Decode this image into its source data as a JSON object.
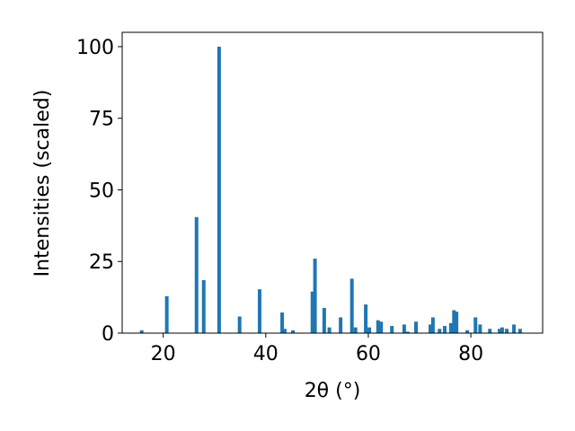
{
  "chart_data": {
    "type": "bar",
    "xlabel": "2θ (°)",
    "ylabel": "Intensities (scaled)",
    "x": [
      15.8,
      20.7,
      26.5,
      27.9,
      30.9,
      34.9,
      38.8,
      43.2,
      43.7,
      45.3,
      49.1,
      49.6,
      51.4,
      52.4,
      54.6,
      56.8,
      57.5,
      59.5,
      60.2,
      61.9,
      62.5,
      64.6,
      67.0,
      67.7,
      69.3,
      72.1,
      72.6,
      73.9,
      74.9,
      76.1,
      76.7,
      77.2,
      79.3,
      80.9,
      81.8,
      83.7,
      85.6,
      86.1,
      87.0,
      88.4,
      89.6
    ],
    "values": [
      1,
      12.9,
      40.5,
      18.5,
      100,
      5.8,
      15.3,
      7.2,
      1.5,
      1,
      14.5,
      26,
      8.8,
      2,
      5.5,
      19,
      2,
      10,
      2,
      4.5,
      4,
      2.5,
      3,
      0.5,
      4,
      3,
      5.5,
      1.5,
      2.5,
      3.5,
      8,
      7.5,
      1,
      5.5,
      3,
      1.5,
      1.5,
      2,
      1.5,
      3,
      1.5
    ],
    "color": "#1f77b4",
    "xlim": [
      12,
      94
    ],
    "xticks": [
      20,
      40,
      60,
      80
    ],
    "ylim": [
      0,
      105
    ],
    "yticks": [
      0,
      25,
      50,
      75,
      100
    ],
    "grid": false
  }
}
